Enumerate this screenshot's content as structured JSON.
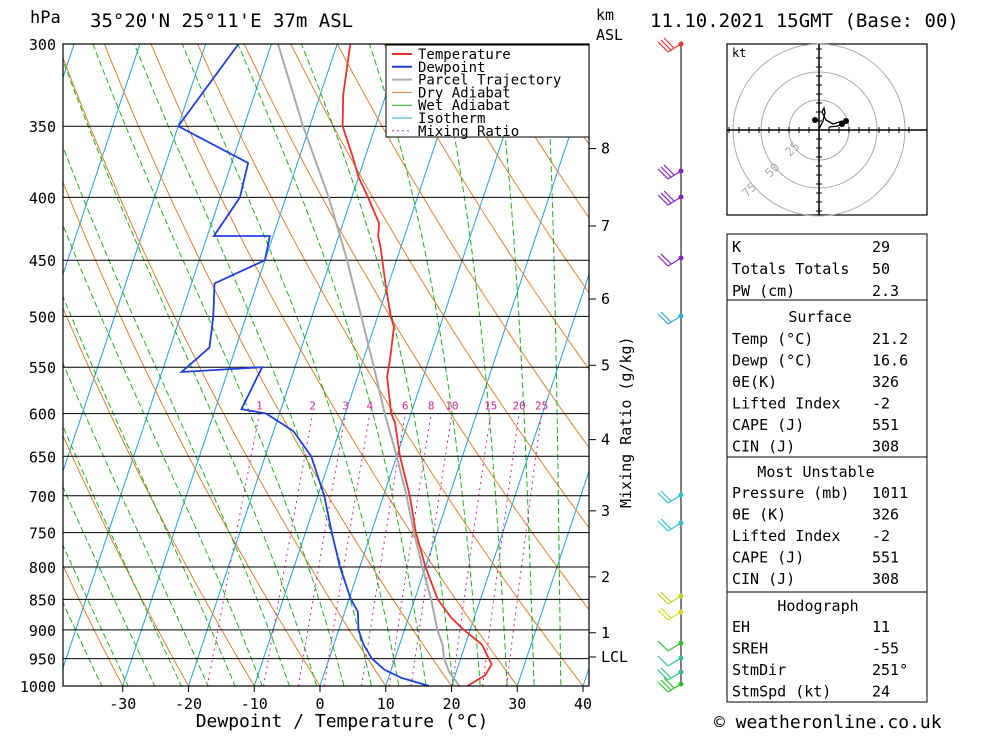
{
  "header": {
    "location": "35°20'N  25°11'E  37m  ASL",
    "datetime": "11.10.2021  15GMT  (Base: 00)",
    "hpa_label": "hPa",
    "km_label": "km",
    "asl_label": "ASL"
  },
  "chart_data": {
    "type": "line",
    "title": "35°20'N  25°11'E  37m  ASL",
    "xlabel": "Dewpoint / Temperature (°C)",
    "ylabel": "hPa",
    "y2label": "Mixing Ratio (g/kg)",
    "xlim": [
      -40,
      40
    ],
    "ylim": [
      1000,
      300
    ],
    "x_ticks": [
      -30,
      -20,
      -10,
      0,
      10,
      20,
      30,
      40
    ],
    "pressure_levels": [
      300,
      350,
      400,
      450,
      500,
      550,
      600,
      650,
      700,
      750,
      800,
      850,
      900,
      950,
      1000
    ],
    "km_ticks": [
      {
        "label": "8",
        "p": 365
      },
      {
        "label": "7",
        "p": 422
      },
      {
        "label": "6",
        "p": 484
      },
      {
        "label": "5",
        "p": 548
      },
      {
        "label": "4",
        "p": 630
      },
      {
        "label": "3",
        "p": 720
      },
      {
        "label": "2",
        "p": 815
      },
      {
        "label": "1",
        "p": 905
      },
      {
        "label": "LCL",
        "p": 947
      }
    ],
    "mixing_ratio_labels": [
      "1",
      "2",
      "3",
      "4",
      "6",
      "8",
      "10",
      "15",
      "20",
      "25"
    ],
    "legend": [
      "Temperature",
      "Dewpoint",
      "Parcel Trajectory",
      "Dry Adiabat",
      "Wet Adiabat",
      "Isotherm",
      "Mixing Ratio"
    ],
    "series": [
      {
        "name": "Temperature",
        "color": "#e8322c",
        "points": [
          [
            22.4,
            1000
          ],
          [
            24.6,
            980
          ],
          [
            25.0,
            960
          ],
          [
            22.5,
            925
          ],
          [
            19.0,
            900
          ],
          [
            16.5,
            880
          ],
          [
            13.5,
            850
          ],
          [
            10.0,
            800
          ],
          [
            6.8,
            750
          ],
          [
            4.0,
            700
          ],
          [
            0.5,
            650
          ],
          [
            -2.0,
            610
          ],
          [
            -3.0,
            600
          ],
          [
            -5.5,
            560
          ],
          [
            -6.0,
            540
          ],
          [
            -7.0,
            510
          ],
          [
            -8.0,
            500
          ],
          [
            -10.5,
            470
          ],
          [
            -13.0,
            440
          ],
          [
            -14.0,
            430
          ],
          [
            -14.5,
            420
          ],
          [
            -17.5,
            400
          ],
          [
            -20.0,
            385
          ],
          [
            -22.0,
            370
          ],
          [
            -25.0,
            350
          ],
          [
            -26.5,
            330
          ],
          [
            -28.0,
            300
          ]
        ]
      },
      {
        "name": "Dewpoint",
        "color": "#2040e0",
        "points": [
          [
            16.6,
            1000
          ],
          [
            12.0,
            985
          ],
          [
            9.0,
            970
          ],
          [
            6.5,
            950
          ],
          [
            4.5,
            925
          ],
          [
            3.0,
            900
          ],
          [
            2.0,
            870
          ],
          [
            0.3,
            850
          ],
          [
            -3.0,
            800
          ],
          [
            -6.0,
            750
          ],
          [
            -9.0,
            700
          ],
          [
            -13.0,
            650
          ],
          [
            -17.0,
            620
          ],
          [
            -22.0,
            600
          ],
          [
            -26.0,
            595
          ],
          [
            -25.0,
            550
          ],
          [
            -37.0,
            555
          ],
          [
            -34.0,
            530
          ],
          [
            -35.0,
            500
          ],
          [
            -36.5,
            470
          ],
          [
            -30.0,
            450
          ],
          [
            -30.5,
            430
          ],
          [
            -39.0,
            430
          ],
          [
            -37.0,
            400
          ],
          [
            -37.5,
            375
          ],
          [
            -50.0,
            350
          ],
          [
            -45.0,
            300
          ]
        ]
      },
      {
        "name": "Parcel Trajectory",
        "color": "#aaaaaa",
        "points": [
          [
            21.2,
            1000
          ],
          [
            19.0,
            975
          ],
          [
            17.5,
            950
          ],
          [
            16.5,
            925
          ],
          [
            15.0,
            900
          ],
          [
            12.5,
            850
          ],
          [
            9.5,
            800
          ],
          [
            6.5,
            750
          ],
          [
            3.5,
            700
          ],
          [
            0.0,
            650
          ],
          [
            -4.0,
            600
          ],
          [
            -8.0,
            550
          ],
          [
            -12.5,
            500
          ],
          [
            -17.5,
            450
          ],
          [
            -23.5,
            400
          ],
          [
            -31.0,
            350
          ],
          [
            -39.0,
            300
          ]
        ]
      }
    ]
  },
  "legend_colors": {
    "Temperature": "#e8322c",
    "Dewpoint": "#2040e0",
    "Parcel Trajectory": "#aaaaaa",
    "Dry Adiabat": "#e08030",
    "Wet Adiabat": "#20b020",
    "Isotherm": "#20a0e0",
    "Mixing Ratio": "#cc2299"
  },
  "hodograph": {
    "unit_label": "kt",
    "ring_labels": [
      "25",
      "50",
      "75"
    ]
  },
  "stats": {
    "indices": [
      {
        "label": "K",
        "value": "29"
      },
      {
        "label": "Totals Totals",
        "value": "50"
      },
      {
        "label": "PW (cm)",
        "value": "2.3"
      }
    ],
    "surface": {
      "title": "Surface",
      "rows": [
        {
          "label": "Temp (°C)",
          "value": "21.2"
        },
        {
          "label": "Dewp (°C)",
          "value": "16.6"
        },
        {
          "label": "θE(K)",
          "value": "326"
        },
        {
          "label": "Lifted Index",
          "value": "-2"
        },
        {
          "label": "CAPE (J)",
          "value": "551"
        },
        {
          "label": "CIN (J)",
          "value": "308"
        }
      ]
    },
    "most_unstable": {
      "title": "Most Unstable",
      "rows": [
        {
          "label": "Pressure (mb)",
          "value": "1011"
        },
        {
          "label": "θE (K)",
          "value": "326"
        },
        {
          "label": "Lifted Index",
          "value": "-2"
        },
        {
          "label": "CAPE (J)",
          "value": "551"
        },
        {
          "label": "CIN (J)",
          "value": "308"
        }
      ]
    },
    "hodograph_box": {
      "title": "Hodograph",
      "rows": [
        {
          "label": "EH",
          "value": "11"
        },
        {
          "label": "SREH",
          "value": "-55"
        },
        {
          "label": "StmDir",
          "value": "251°"
        },
        {
          "label": "StmSpd (kt)",
          "value": "24"
        }
      ]
    }
  },
  "footer": {
    "copyright": "© weatheronline.co.uk"
  }
}
